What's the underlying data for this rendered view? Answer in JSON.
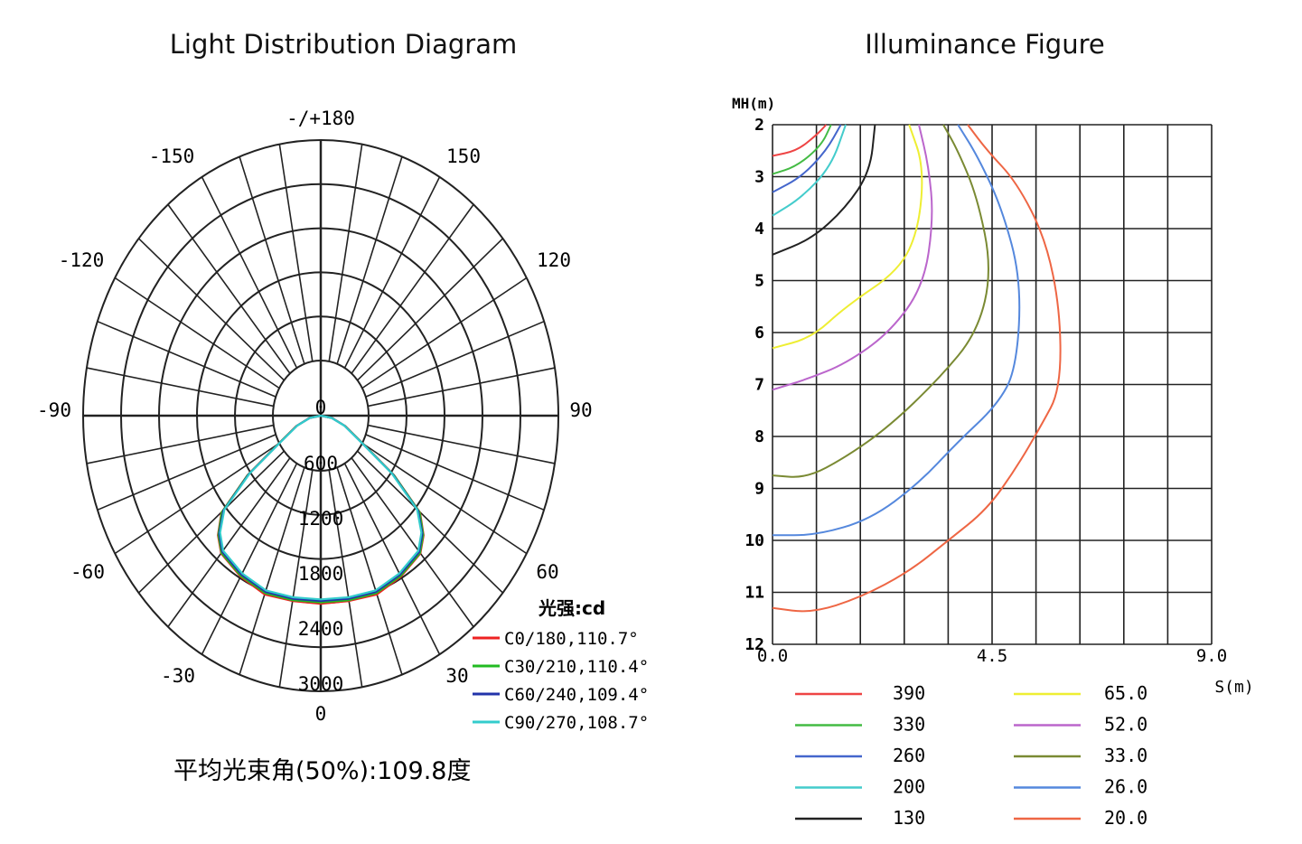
{
  "chart_data": [
    {
      "type": "polar",
      "title": "Light Distribution Diagram",
      "angle_labels": {
        "top": "-/+180",
        "upper_left": "-150",
        "upper_right": "150",
        "mid_upper_left": "-120",
        "mid_upper_right": "120",
        "left": "-90",
        "right": "90",
        "lower_left": "-60",
        "lower_right": "60",
        "bottom_left": "-30",
        "bottom_right": "30",
        "bottom": "0"
      },
      "radial_labels": [
        "0",
        "600",
        "1200",
        "1800",
        "2400",
        "3000"
      ],
      "radial_max": 3000,
      "unit_label": "光强:cd",
      "footer": "平均光束角(50%):109.8度",
      "series": [
        {
          "name": "C0/180,110.7°",
          "color": "#ee2222",
          "values": [
            [
              0,
              2560
            ],
            [
              10,
              2560
            ],
            [
              20,
              2590
            ],
            [
              30,
              2530
            ],
            [
              40,
              2450
            ],
            [
              45,
              2300
            ],
            [
              50,
              2050
            ],
            [
              55,
              1420
            ],
            [
              60,
              790
            ],
            [
              70,
              410
            ],
            [
              80,
              180
            ],
            [
              90,
              0
            ]
          ]
        },
        {
          "name": "C30/210,110.4°",
          "color": "#22bb22",
          "values": [
            [
              0,
              2540
            ],
            [
              10,
              2550
            ],
            [
              20,
              2570
            ],
            [
              30,
              2520
            ],
            [
              40,
              2440
            ],
            [
              45,
              2290
            ],
            [
              50,
              2040
            ],
            [
              55,
              1410
            ],
            [
              60,
              780
            ],
            [
              70,
              405
            ],
            [
              80,
              178
            ],
            [
              90,
              0
            ]
          ]
        },
        {
          "name": "C60/240,109.4°",
          "color": "#2233aa",
          "values": [
            [
              0,
              2520
            ],
            [
              10,
              2530
            ],
            [
              20,
              2550
            ],
            [
              30,
              2500
            ],
            [
              40,
              2420
            ],
            [
              45,
              2270
            ],
            [
              50,
              2010
            ],
            [
              55,
              1390
            ],
            [
              60,
              770
            ],
            [
              70,
              400
            ],
            [
              80,
              175
            ],
            [
              90,
              0
            ]
          ]
        },
        {
          "name": "C90/270,108.7°",
          "color": "#33cccc",
          "values": [
            [
              0,
              2500
            ],
            [
              10,
              2510
            ],
            [
              20,
              2530
            ],
            [
              30,
              2480
            ],
            [
              40,
              2400
            ],
            [
              45,
              2250
            ],
            [
              50,
              1990
            ],
            [
              55,
              1370
            ],
            [
              60,
              760
            ],
            [
              70,
              395
            ],
            [
              80,
              172
            ],
            [
              90,
              0
            ]
          ]
        }
      ]
    },
    {
      "type": "isolux",
      "title": "Illuminance Figure",
      "ylabel": "MH(m)",
      "xlabel": "S(m)",
      "y_ticks": [
        "2",
        "3",
        "4",
        "5",
        "6",
        "7",
        "8",
        "9",
        "10",
        "11",
        "12"
      ],
      "x_ticks": [
        "0.0",
        "4.5",
        "9.0"
      ],
      "xlim": [
        0,
        9
      ],
      "ylim": [
        2,
        12
      ],
      "series": [
        {
          "name": "390",
          "color": "#ee4444",
          "points": [
            [
              0,
              2.6
            ],
            [
              0.5,
              2.5
            ],
            [
              0.9,
              2.2
            ],
            [
              1.1,
              2.0
            ]
          ]
        },
        {
          "name": "330",
          "color": "#44bb44",
          "points": [
            [
              0,
              2.95
            ],
            [
              0.5,
              2.8
            ],
            [
              1.0,
              2.4
            ],
            [
              1.2,
              2.0
            ]
          ]
        },
        {
          "name": "260",
          "color": "#4466cc",
          "points": [
            [
              0,
              3.3
            ],
            [
              0.6,
              3.0
            ],
            [
              1.1,
              2.5
            ],
            [
              1.4,
              2.0
            ]
          ]
        },
        {
          "name": "200",
          "color": "#44cccc",
          "points": [
            [
              0,
              3.75
            ],
            [
              0.6,
              3.4
            ],
            [
              1.2,
              2.8
            ],
            [
              1.5,
              2.0
            ]
          ]
        },
        {
          "name": "130",
          "color": "#222222",
          "points": [
            [
              0,
              4.5
            ],
            [
              0.8,
              4.2
            ],
            [
              1.5,
              3.6
            ],
            [
              2.0,
              2.9
            ],
            [
              2.1,
              2.0
            ]
          ]
        },
        {
          "name": "65.0",
          "color": "#eeee33",
          "points": [
            [
              0,
              6.3
            ],
            [
              0.8,
              6.1
            ],
            [
              1.5,
              5.5
            ],
            [
              2.6,
              4.8
            ],
            [
              3.0,
              4.0
            ],
            [
              3.1,
              2.8
            ],
            [
              2.8,
              2.0
            ]
          ]
        },
        {
          "name": "52.0",
          "color": "#bb66cc",
          "points": [
            [
              0,
              7.1
            ],
            [
              0.7,
              6.9
            ],
            [
              1.5,
              6.6
            ],
            [
              2.4,
              6.0
            ],
            [
              3.1,
              5.1
            ],
            [
              3.3,
              3.8
            ],
            [
              3.2,
              2.8
            ],
            [
              3.0,
              2.0
            ]
          ]
        },
        {
          "name": "33.0",
          "color": "#7a8a33",
          "points": [
            [
              0,
              8.75
            ],
            [
              0.7,
              8.8
            ],
            [
              1.5,
              8.4
            ],
            [
              2.4,
              7.8
            ],
            [
              3.4,
              6.9
            ],
            [
              4.2,
              6.0
            ],
            [
              4.5,
              4.8
            ],
            [
              4.2,
              3.4
            ],
            [
              3.8,
              2.5
            ],
            [
              3.5,
              2.0
            ]
          ]
        },
        {
          "name": "26.0",
          "color": "#5588dd",
          "points": [
            [
              0,
              9.9
            ],
            [
              0.9,
              9.9
            ],
            [
              2.0,
              9.6
            ],
            [
              3.0,
              8.9
            ],
            [
              3.8,
              8.1
            ],
            [
              4.6,
              7.4
            ],
            [
              5.0,
              6.7
            ],
            [
              5.1,
              5.0
            ],
            [
              4.7,
              3.6
            ],
            [
              4.2,
              2.6
            ],
            [
              3.8,
              2.0
            ]
          ]
        },
        {
          "name": "20.0",
          "color": "#ee6644",
          "points": [
            [
              0,
              11.3
            ],
            [
              0.8,
              11.4
            ],
            [
              1.8,
              11.1
            ],
            [
              2.8,
              10.6
            ],
            [
              3.6,
              10.0
            ],
            [
              4.4,
              9.4
            ],
            [
              5.0,
              8.6
            ],
            [
              5.5,
              7.8
            ],
            [
              5.9,
              7.1
            ],
            [
              5.9,
              5.6
            ],
            [
              5.6,
              4.2
            ],
            [
              5.0,
              3.1
            ],
            [
              4.4,
              2.5
            ],
            [
              4.0,
              2.0
            ]
          ]
        }
      ]
    }
  ]
}
